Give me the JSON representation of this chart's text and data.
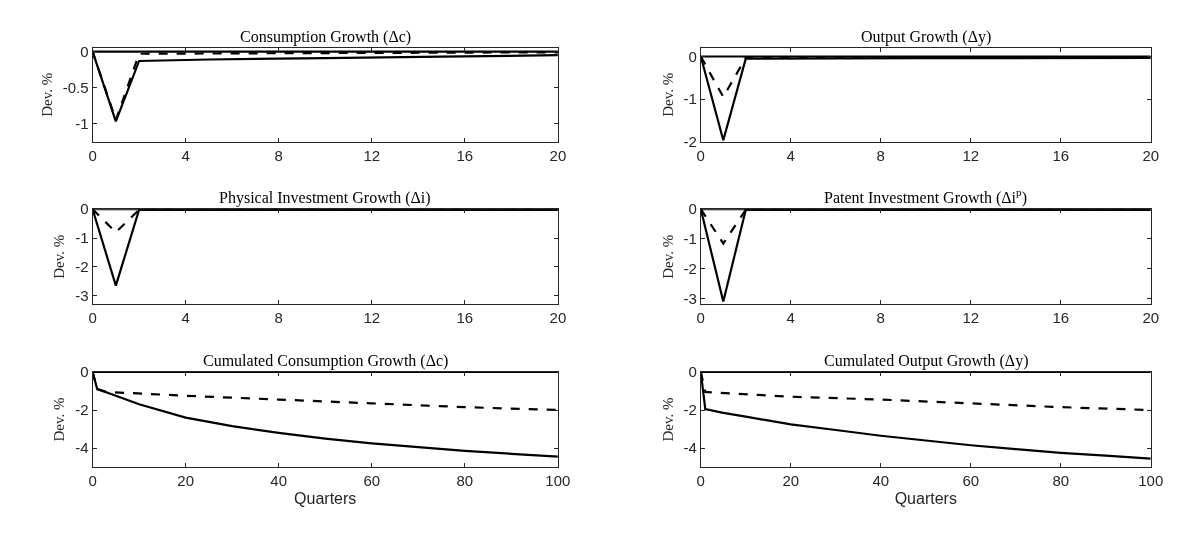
{
  "chart_data": [
    {
      "type": "line",
      "title": "Consumption Growth (Δc)",
      "ylabel": "Dev. %",
      "xlim": [
        0,
        20
      ],
      "xticks": [
        0,
        4,
        8,
        12,
        16,
        20
      ],
      "ylim": [
        -1.25,
        0.05
      ],
      "yticks": [
        -1,
        -0.5,
        0
      ],
      "series": [
        {
          "color": "#000000",
          "line_style": "solid",
          "x": [
            0,
            20
          ],
          "values": [
            0,
            0
          ]
        },
        {
          "color": "#000000",
          "line_style": "solid",
          "x": [
            0,
            1,
            2,
            5,
            10,
            15,
            20
          ],
          "values": [
            0,
            -0.97,
            -0.13,
            -0.11,
            -0.09,
            -0.07,
            -0.05
          ]
        },
        {
          "color": "#000000",
          "line_style": "dashed",
          "x": [
            0,
            1,
            2,
            10,
            20
          ],
          "values": [
            0,
            -0.95,
            -0.03,
            -0.02,
            -0.01
          ]
        }
      ]
    },
    {
      "type": "line",
      "title": "Output Growth (Δy)",
      "ylabel": "Dev. %",
      "xlim": [
        0,
        20
      ],
      "xticks": [
        0,
        4,
        8,
        12,
        16,
        20
      ],
      "ylim": [
        -2,
        0.2
      ],
      "yticks": [
        -2,
        -1,
        0
      ],
      "series": [
        {
          "color": "#000000",
          "line_style": "solid",
          "x": [
            0,
            20
          ],
          "values": [
            0,
            0
          ]
        },
        {
          "color": "#000000",
          "line_style": "solid",
          "x": [
            0,
            1,
            2,
            10,
            20
          ],
          "values": [
            0,
            -1.97,
            -0.05,
            -0.04,
            -0.03
          ]
        },
        {
          "color": "#000000",
          "line_style": "dashed",
          "x": [
            0,
            1,
            2,
            10,
            20
          ],
          "values": [
            0,
            -0.95,
            -0.03,
            -0.02,
            -0.02
          ]
        }
      ]
    },
    {
      "type": "line",
      "title": "Physical Investment Growth (Δi)",
      "ylabel": "Dev. %",
      "xlim": [
        0,
        20
      ],
      "xticks": [
        0,
        4,
        8,
        12,
        16,
        20
      ],
      "ylim": [
        -3.3,
        0
      ],
      "yticks": [
        -3,
        -2,
        -1,
        0
      ],
      "series": [
        {
          "color": "#000000",
          "line_style": "solid",
          "x": [
            0,
            20
          ],
          "values": [
            0,
            0
          ]
        },
        {
          "color": "#000000",
          "line_style": "solid",
          "x": [
            0,
            1,
            2,
            20
          ],
          "values": [
            0,
            -2.65,
            -0.02,
            -0.02
          ]
        },
        {
          "color": "#000000",
          "line_style": "dashed",
          "x": [
            0,
            1,
            2,
            20
          ],
          "values": [
            0,
            -0.8,
            -0.02,
            -0.02
          ]
        }
      ]
    },
    {
      "type": "line",
      "title": "Patent Investment Growth (Δi$^{p}$)",
      "ylabel": "Dev. %",
      "xlim": [
        0,
        20
      ],
      "xticks": [
        0,
        4,
        8,
        12,
        16,
        20
      ],
      "ylim": [
        -3.2,
        0
      ],
      "yticks": [
        -3,
        -2,
        -1,
        0
      ],
      "series": [
        {
          "color": "#000000",
          "line_style": "solid",
          "x": [
            0,
            20
          ],
          "values": [
            0,
            0
          ]
        },
        {
          "color": "#000000",
          "line_style": "solid",
          "x": [
            0,
            1,
            2,
            20
          ],
          "values": [
            0,
            -3.1,
            -0.02,
            -0.02
          ]
        },
        {
          "color": "#000000",
          "line_style": "dashed",
          "x": [
            0,
            1,
            2,
            20
          ],
          "values": [
            0,
            -1.15,
            -0.02,
            -0.02
          ]
        }
      ]
    },
    {
      "type": "line",
      "title": "Cumulated Consumption Growth (Δc)",
      "ylabel": "Dev. %",
      "xlabel": "Quarters",
      "xlim": [
        0,
        100
      ],
      "xticks": [
        0,
        20,
        40,
        60,
        80,
        100
      ],
      "ylim": [
        -5,
        0
      ],
      "yticks": [
        -4,
        -2,
        0
      ],
      "series": [
        {
          "color": "#000000",
          "line_style": "solid",
          "x": [
            0,
            100
          ],
          "values": [
            0,
            0
          ]
        },
        {
          "color": "#000000",
          "line_style": "solid",
          "x": [
            0,
            1,
            5,
            10,
            20,
            30,
            40,
            50,
            60,
            70,
            80,
            90,
            100
          ],
          "values": [
            0,
            -0.9,
            -1.25,
            -1.7,
            -2.4,
            -2.85,
            -3.2,
            -3.5,
            -3.75,
            -3.95,
            -4.15,
            -4.3,
            -4.45
          ]
        },
        {
          "color": "#000000",
          "line_style": "dashed",
          "x": [
            0,
            1,
            3,
            20,
            40,
            60,
            80,
            100
          ],
          "values": [
            0,
            -0.9,
            -1.05,
            -1.25,
            -1.45,
            -1.65,
            -1.85,
            -2.0
          ]
        }
      ]
    },
    {
      "type": "line",
      "title": "Cumulated Output Growth (Δy)",
      "ylabel": "Dev. %",
      "xlabel": "Quarters",
      "xlim": [
        0,
        100
      ],
      "xticks": [
        0,
        20,
        40,
        60,
        80,
        100
      ],
      "ylim": [
        -5,
        0
      ],
      "yticks": [
        -4,
        -2,
        0
      ],
      "series": [
        {
          "color": "#000000",
          "line_style": "solid",
          "x": [
            0,
            100
          ],
          "values": [
            0,
            0
          ]
        },
        {
          "color": "#000000",
          "line_style": "solid",
          "x": [
            0,
            1,
            5,
            10,
            20,
            30,
            40,
            50,
            60,
            70,
            80,
            90,
            100
          ],
          "values": [
            0,
            -1.95,
            -2.15,
            -2.35,
            -2.75,
            -3.05,
            -3.35,
            -3.6,
            -3.85,
            -4.05,
            -4.25,
            -4.4,
            -4.55
          ]
        },
        {
          "color": "#000000",
          "line_style": "dashed",
          "x": [
            0,
            1,
            20,
            40,
            60,
            80,
            100
          ],
          "values": [
            0,
            -1.05,
            -1.3,
            -1.45,
            -1.65,
            -1.85,
            -2.0
          ]
        }
      ]
    }
  ]
}
